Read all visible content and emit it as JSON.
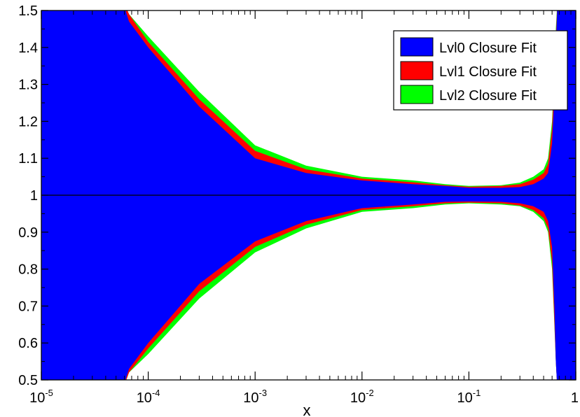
{
  "chart_data": {
    "type": "area",
    "title": "",
    "xlabel": "x",
    "ylabel": "",
    "xscale": "log",
    "xlim": [
      1e-05,
      1
    ],
    "ylim": [
      0.5,
      1.5
    ],
    "grid": false,
    "legend_position": "top-right",
    "reference_line": 1,
    "x_ticks": [
      {
        "base": "10",
        "exp": "-5"
      },
      {
        "base": "10",
        "exp": "-4"
      },
      {
        "base": "10",
        "exp": "-3"
      },
      {
        "base": "10",
        "exp": "-2"
      },
      {
        "base": "10",
        "exp": "-1"
      },
      {
        "base": "1",
        "exp": ""
      }
    ],
    "y_ticks": [
      "0.5",
      "0.6",
      "0.7",
      "0.8",
      "0.9",
      "1",
      "1.1",
      "1.2",
      "1.3",
      "1.4",
      "1.5"
    ],
    "x": [
      1e-05,
      5.39e-05,
      6.61e-05,
      0.0001,
      0.0003,
      0.001,
      0.003,
      0.01,
      0.03,
      0.06,
      0.1,
      0.2,
      0.3,
      0.4,
      0.5,
      0.55,
      0.6,
      0.63,
      0.65,
      0.68,
      0.7,
      1
    ],
    "series": [
      {
        "name": "Lvl2 Closure Fit",
        "color": "#00ff00",
        "upper": [
          1.55,
          1.55,
          1.49,
          1.43,
          1.28,
          1.135,
          1.08,
          1.05,
          1.04,
          1.03,
          1.025,
          1.027,
          1.034,
          1.05,
          1.07,
          1.1,
          1.2,
          1.35,
          1.45,
          1.55,
          1.6,
          1.6
        ],
        "lower": [
          0.45,
          0.45,
          0.52,
          0.57,
          0.72,
          0.845,
          0.91,
          0.955,
          0.965,
          0.975,
          0.978,
          0.975,
          0.97,
          0.955,
          0.93,
          0.9,
          0.8,
          0.65,
          0.55,
          0.45,
          0.4,
          0.4
        ]
      },
      {
        "name": "Lvl1 Closure Fit",
        "color": "#ff0000",
        "upper": [
          1.55,
          1.55,
          1.49,
          1.415,
          1.26,
          1.12,
          1.07,
          1.045,
          1.035,
          1.027,
          1.023,
          1.025,
          1.03,
          1.042,
          1.06,
          1.085,
          1.18,
          1.33,
          1.43,
          1.55,
          1.6,
          1.6
        ],
        "lower": [
          0.45,
          0.45,
          0.52,
          0.585,
          0.74,
          0.86,
          0.92,
          0.96,
          0.97,
          0.978,
          0.98,
          0.978,
          0.972,
          0.96,
          0.938,
          0.91,
          0.82,
          0.66,
          0.55,
          0.45,
          0.4,
          0.4
        ]
      },
      {
        "name": "Lvl0 Closure Fit",
        "color": "#0000ff",
        "upper": [
          1.55,
          1.55,
          1.47,
          1.4,
          1.24,
          1.1,
          1.06,
          1.04,
          1.03,
          1.025,
          1.02,
          1.02,
          1.022,
          1.03,
          1.045,
          1.06,
          1.14,
          1.27,
          1.4,
          1.55,
          1.6,
          1.6
        ],
        "lower": [
          0.45,
          0.45,
          0.53,
          0.6,
          0.76,
          0.875,
          0.93,
          0.965,
          0.975,
          0.982,
          0.983,
          0.982,
          0.978,
          0.97,
          0.955,
          0.93,
          0.86,
          0.7,
          0.55,
          0.45,
          0.4,
          0.4
        ]
      }
    ],
    "legend": [
      {
        "label": "Lvl0 Closure Fit",
        "color": "#0000ff"
      },
      {
        "label": "Lvl1 Closure Fit",
        "color": "#ff0000"
      },
      {
        "label": "Lvl2 Closure Fit",
        "color": "#00ff00"
      }
    ]
  }
}
